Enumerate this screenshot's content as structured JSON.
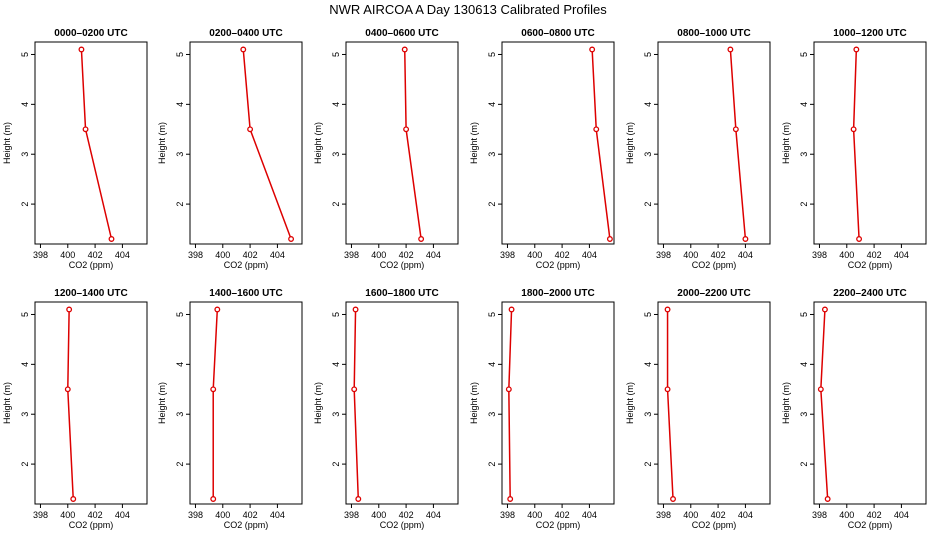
{
  "title": "NWR AIRCOA A  Day 130613  Calibrated Profiles",
  "colors": {
    "series": "#dd0000",
    "axes": "#000000",
    "background": "#ffffff"
  },
  "chart_data": [
    {
      "type": "line",
      "title": "0000–0200 UTC",
      "xlabel": "CO2 (ppm)",
      "ylabel": "Height (m)",
      "xlim": [
        397.6,
        405.8
      ],
      "ylim": [
        1.2,
        5.25
      ],
      "xticks": [
        398,
        400,
        402,
        404
      ],
      "yticks": [
        2,
        3,
        4,
        5
      ],
      "grid": false,
      "legend": "none",
      "x": [
        401.0,
        401.3,
        403.2
      ],
      "y": [
        5.1,
        3.5,
        1.3
      ]
    },
    {
      "type": "line",
      "title": "0200–0400 UTC",
      "xlabel": "CO2 (ppm)",
      "ylabel": "Height (m)",
      "xlim": [
        397.6,
        405.8
      ],
      "ylim": [
        1.2,
        5.25
      ],
      "xticks": [
        398,
        400,
        402,
        404
      ],
      "yticks": [
        2,
        3,
        4,
        5
      ],
      "grid": false,
      "legend": "none",
      "x": [
        401.5,
        402.0,
        405.0
      ],
      "y": [
        5.1,
        3.5,
        1.3
      ]
    },
    {
      "type": "line",
      "title": "0400–0600 UTC",
      "xlabel": "CO2 (ppm)",
      "ylabel": "Height (m)",
      "xlim": [
        397.6,
        405.8
      ],
      "ylim": [
        1.2,
        5.25
      ],
      "xticks": [
        398,
        400,
        402,
        404
      ],
      "yticks": [
        2,
        3,
        4,
        5
      ],
      "grid": false,
      "legend": "none",
      "x": [
        401.9,
        402.0,
        403.1
      ],
      "y": [
        5.1,
        3.5,
        1.3
      ]
    },
    {
      "type": "line",
      "title": "0600–0800 UTC",
      "xlabel": "CO2 (ppm)",
      "ylabel": "Height (m)",
      "xlim": [
        397.6,
        405.8
      ],
      "ylim": [
        1.2,
        5.25
      ],
      "xticks": [
        398,
        400,
        402,
        404
      ],
      "yticks": [
        2,
        3,
        4,
        5
      ],
      "grid": false,
      "legend": "none",
      "x": [
        404.2,
        404.5,
        405.5
      ],
      "y": [
        5.1,
        3.5,
        1.3
      ]
    },
    {
      "type": "line",
      "title": "0800–1000 UTC",
      "xlabel": "CO2 (ppm)",
      "ylabel": "Height (m)",
      "xlim": [
        397.6,
        405.8
      ],
      "ylim": [
        1.2,
        5.25
      ],
      "xticks": [
        398,
        400,
        402,
        404
      ],
      "yticks": [
        2,
        3,
        4,
        5
      ],
      "grid": false,
      "legend": "none",
      "x": [
        402.9,
        403.3,
        404.0
      ],
      "y": [
        5.1,
        3.5,
        1.3
      ]
    },
    {
      "type": "line",
      "title": "1000–1200 UTC",
      "xlabel": "CO2 (ppm)",
      "ylabel": "Height (m)",
      "xlim": [
        397.6,
        405.8
      ],
      "ylim": [
        1.2,
        5.25
      ],
      "xticks": [
        398,
        400,
        402,
        404
      ],
      "yticks": [
        2,
        3,
        4,
        5
      ],
      "grid": false,
      "legend": "none",
      "x": [
        400.7,
        400.5,
        400.9
      ],
      "y": [
        5.1,
        3.5,
        1.3
      ]
    },
    {
      "type": "line",
      "title": "1200–1400 UTC",
      "xlabel": "CO2 (ppm)",
      "ylabel": "Height (m)",
      "xlim": [
        397.6,
        405.8
      ],
      "ylim": [
        1.2,
        5.25
      ],
      "xticks": [
        398,
        400,
        402,
        404
      ],
      "yticks": [
        2,
        3,
        4,
        5
      ],
      "grid": false,
      "legend": "none",
      "x": [
        400.1,
        400.0,
        400.4
      ],
      "y": [
        5.1,
        3.5,
        1.3
      ]
    },
    {
      "type": "line",
      "title": "1400–1600 UTC",
      "xlabel": "CO2 (ppm)",
      "ylabel": "Height (m)",
      "xlim": [
        397.6,
        405.8
      ],
      "ylim": [
        1.2,
        5.25
      ],
      "xticks": [
        398,
        400,
        402,
        404
      ],
      "yticks": [
        2,
        3,
        4,
        5
      ],
      "grid": false,
      "legend": "none",
      "x": [
        399.6,
        399.3,
        399.3
      ],
      "y": [
        5.1,
        3.5,
        1.3
      ]
    },
    {
      "type": "line",
      "title": "1600–1800 UTC",
      "xlabel": "CO2 (ppm)",
      "ylabel": "Height (m)",
      "xlim": [
        397.6,
        405.8
      ],
      "ylim": [
        1.2,
        5.25
      ],
      "xticks": [
        398,
        400,
        402,
        404
      ],
      "yticks": [
        2,
        3,
        4,
        5
      ],
      "grid": false,
      "legend": "none",
      "x": [
        398.3,
        398.2,
        398.5
      ],
      "y": [
        5.1,
        3.5,
        1.3
      ]
    },
    {
      "type": "line",
      "title": "1800–2000 UTC",
      "xlabel": "CO2 (ppm)",
      "ylabel": "Height (m)",
      "xlim": [
        397.6,
        405.8
      ],
      "ylim": [
        1.2,
        5.25
      ],
      "xticks": [
        398,
        400,
        402,
        404
      ],
      "yticks": [
        2,
        3,
        4,
        5
      ],
      "grid": false,
      "legend": "none",
      "x": [
        398.3,
        398.1,
        398.2
      ],
      "y": [
        5.1,
        3.5,
        1.3
      ]
    },
    {
      "type": "line",
      "title": "2000–2200 UTC",
      "xlabel": "CO2 (ppm)",
      "ylabel": "Height (m)",
      "xlim": [
        397.6,
        405.8
      ],
      "ylim": [
        1.2,
        5.25
      ],
      "xticks": [
        398,
        400,
        402,
        404
      ],
      "yticks": [
        2,
        3,
        4,
        5
      ],
      "grid": false,
      "legend": "none",
      "x": [
        398.3,
        398.3,
        398.7
      ],
      "y": [
        5.1,
        3.5,
        1.3
      ]
    },
    {
      "type": "line",
      "title": "2200–2400 UTC",
      "xlabel": "CO2 (ppm)",
      "ylabel": "Height (m)",
      "xlim": [
        397.6,
        405.8
      ],
      "ylim": [
        1.2,
        5.25
      ],
      "xticks": [
        398,
        400,
        402,
        404
      ],
      "yticks": [
        2,
        3,
        4,
        5
      ],
      "grid": false,
      "legend": "none",
      "x": [
        398.4,
        398.1,
        398.6
      ],
      "y": [
        5.1,
        3.5,
        1.3
      ]
    }
  ]
}
